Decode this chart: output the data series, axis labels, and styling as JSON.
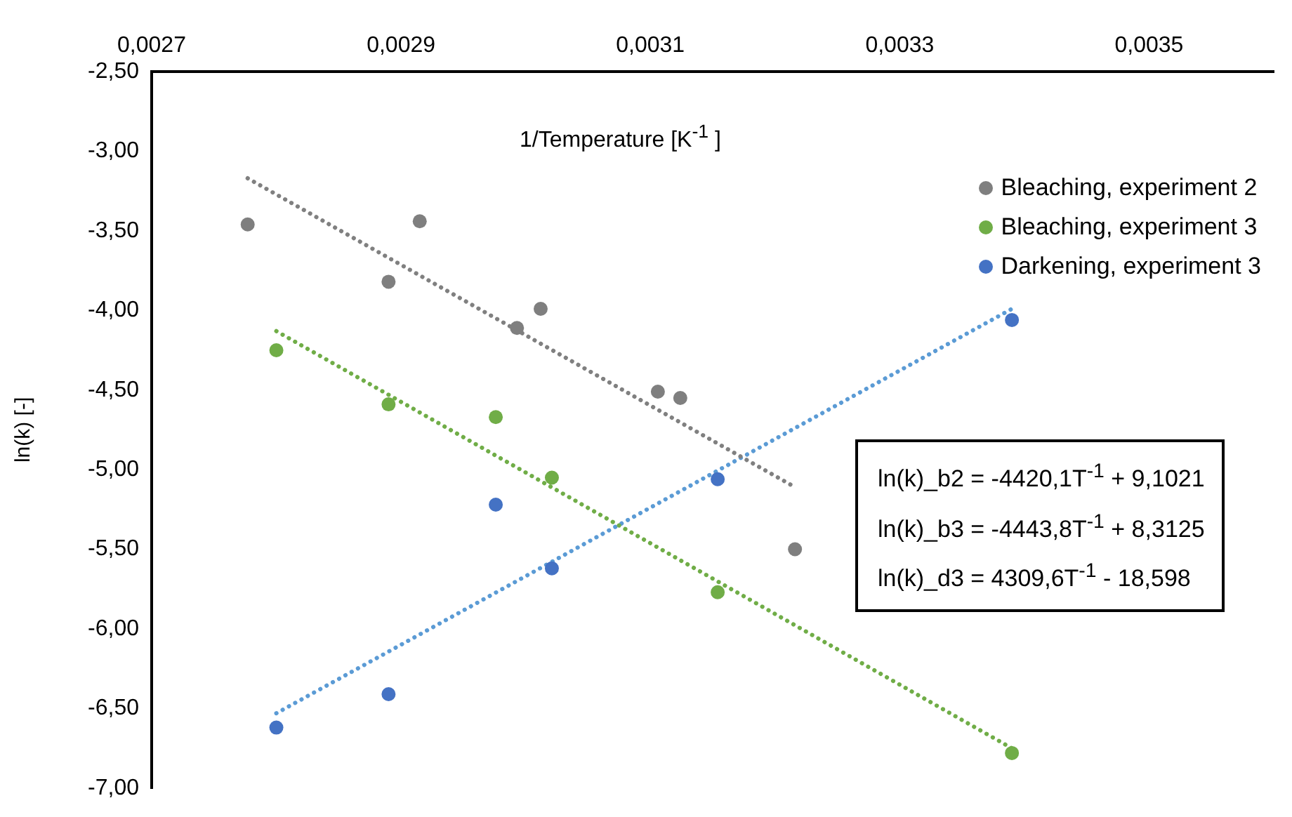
{
  "chart_data": {
    "type": "scatter",
    "xlabel": "1/Temperature [K$^{-1}$ ]",
    "ylabel": "ln(k) [-]",
    "xlim": [
      0.0027,
      0.0036
    ],
    "ylim": [
      -7,
      -2.5
    ],
    "xticks": [
      {
        "value": 0.0027,
        "label": "0,0027"
      },
      {
        "value": 0.0029,
        "label": "0,0029"
      },
      {
        "value": 0.0031,
        "label": "0,0031"
      },
      {
        "value": 0.0033,
        "label": "0,0033"
      },
      {
        "value": 0.0035,
        "label": "0,0035"
      }
    ],
    "yticks": [
      {
        "value": -7,
        "label": "-7,00"
      },
      {
        "value": -6.5,
        "label": "-6,50"
      },
      {
        "value": -6,
        "label": "-6,00"
      },
      {
        "value": -5.5,
        "label": "-5,50"
      },
      {
        "value": -5,
        "label": "-5,00"
      },
      {
        "value": -4.5,
        "label": "-4,50"
      },
      {
        "value": -4,
        "label": "-4,00"
      },
      {
        "value": -3.5,
        "label": "-3,50"
      },
      {
        "value": -3,
        "label": "-3,00"
      },
      {
        "value": -2.5,
        "label": "-2,50"
      }
    ],
    "grid": false,
    "legend": "top right",
    "marker": "circle",
    "series": [
      {
        "name": "Bleaching, experiment 2",
        "color": "#7f7f7f",
        "x": [
          0.002777,
          0.00289,
          0.002915,
          0.002993,
          0.003012,
          0.003106,
          0.003124,
          0.003216
        ],
        "values": [
          -3.46,
          -3.82,
          -3.44,
          -4.11,
          -3.99,
          -4.51,
          -4.55,
          -5.5
        ]
      },
      {
        "name": "Bleaching, experiment 3",
        "color": "#70ad47",
        "x": [
          0.0028,
          0.00289,
          0.002976,
          0.003021,
          0.003154,
          0.00339
        ],
        "values": [
          -4.25,
          -4.59,
          -4.67,
          -5.05,
          -5.77,
          -6.78
        ]
      },
      {
        "name": "Darkening, experiment 3",
        "color": "#4472c4",
        "x": [
          0.0028,
          0.00289,
          0.002976,
          0.003021,
          0.003154,
          0.00339
        ],
        "values": [
          -6.62,
          -6.41,
          -5.22,
          -5.62,
          -5.06,
          -4.06
        ]
      },
      {
        "type": "line",
        "marker": "none",
        "line_style": "dotted",
        "color": "#808080",
        "x": [
          0.002777,
          0.003216
        ],
        "values": [
          -3.17,
          -5.11
        ]
      },
      {
        "type": "line",
        "marker": "none",
        "line_style": "dotted",
        "color": "#70ad47",
        "x": [
          0.0028,
          0.00339
        ],
        "values": [
          -4.13,
          -6.75
        ]
      },
      {
        "type": "line",
        "marker": "none",
        "line_style": "dotted",
        "color": "#5b9bd5",
        "x": [
          0.0028,
          0.00339
        ],
        "values": [
          -6.53,
          -3.99
        ]
      }
    ],
    "annotations": [
      "ln(k)_b2 = -4420,1T$^{-1}$ + 9,1021",
      "ln(k)_b3 = -4443,8T$^{-1}$ + 8,3125",
      "ln(k)_d3 = 4309,6T$^{-1}$ - 18,598"
    ]
  }
}
